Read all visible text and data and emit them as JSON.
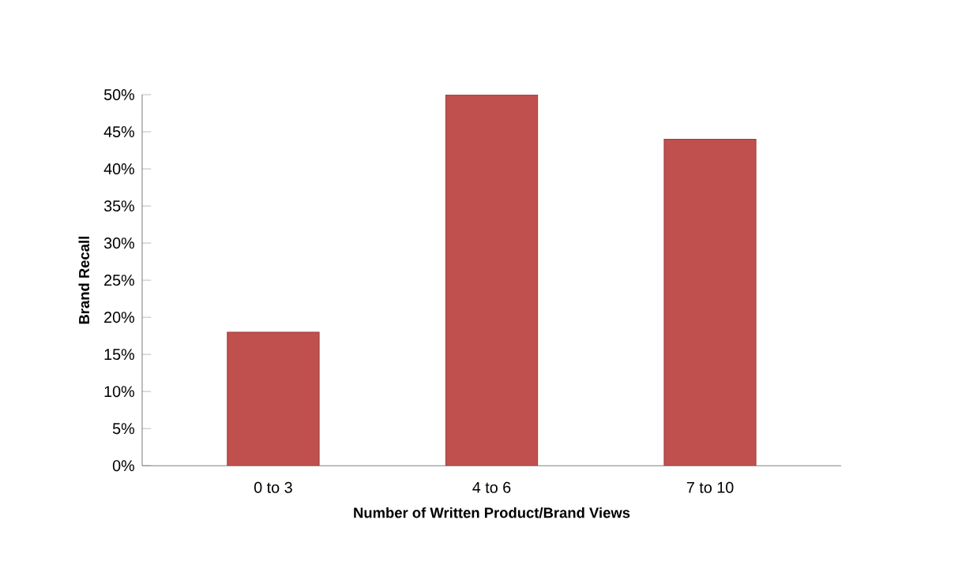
{
  "chart_data": {
    "type": "bar",
    "xlabel": "Number of Written Product/Brand Views",
    "ylabel": "Brand Recall",
    "categories": [
      "0 to 3",
      "4 to 6",
      "7 to 10"
    ],
    "values": [
      18,
      50,
      44
    ],
    "color": "#c0504d",
    "ylim": [
      0,
      50
    ],
    "yticks": [
      {
        "value": 0,
        "label": "0%"
      },
      {
        "value": 5,
        "label": "5%"
      },
      {
        "value": 10,
        "label": "10%"
      },
      {
        "value": 15,
        "label": "15%"
      },
      {
        "value": 20,
        "label": "20%"
      },
      {
        "value": 25,
        "label": "25%"
      },
      {
        "value": 30,
        "label": "30%"
      },
      {
        "value": 35,
        "label": "35%"
      },
      {
        "value": 40,
        "label": "40%"
      },
      {
        "value": 45,
        "label": "45%"
      },
      {
        "value": 50,
        "label": "50%"
      }
    ],
    "grid": false
  }
}
